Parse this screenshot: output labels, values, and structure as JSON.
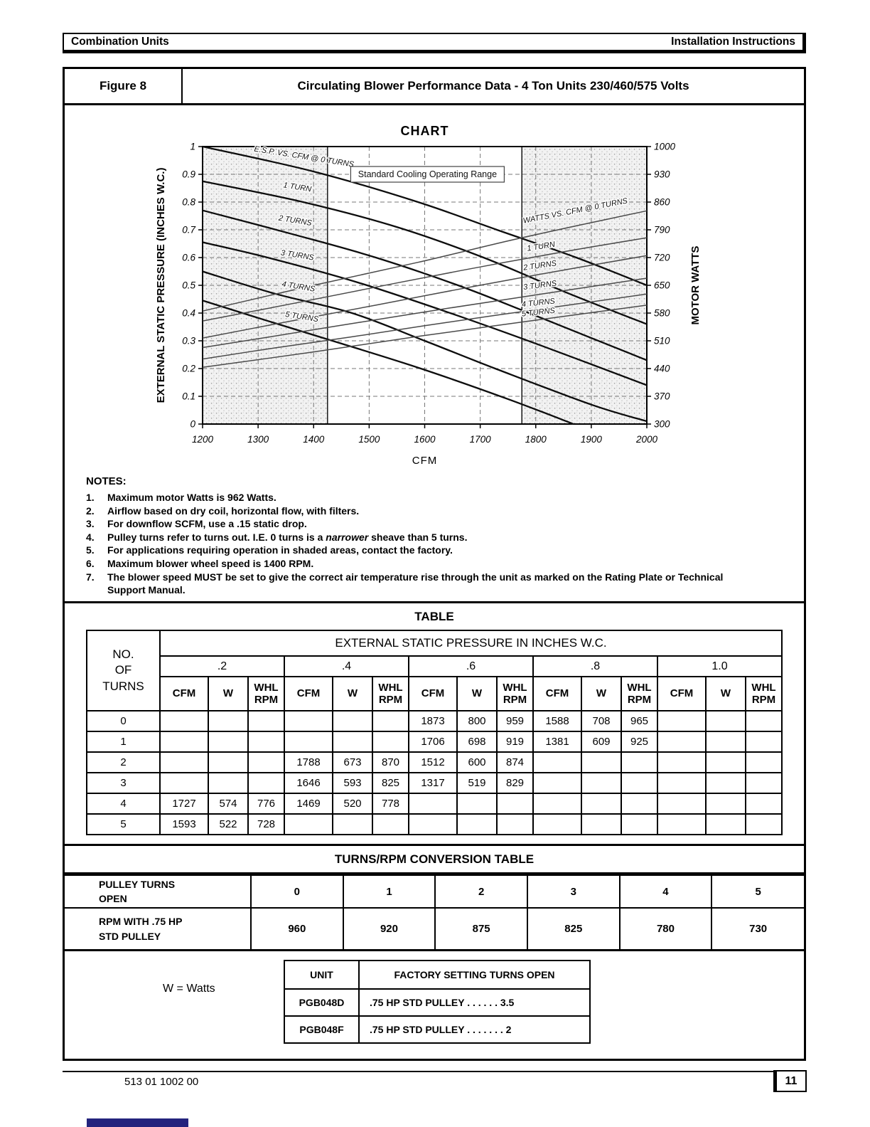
{
  "page_header": {
    "left": "Combination Units",
    "right": "Installation Instructions"
  },
  "figure": {
    "label": "Figure 8",
    "title": "Circulating Blower Performance Data - 4 Ton Units 230/460/575 Volts"
  },
  "chart_data": {
    "type": "line",
    "title": "CHART",
    "xlabel": "CFM",
    "ylabel_left": "EXTERNAL STATIC PRESSURE (INCHES W.C.)",
    "ylabel_right": "MOTOR WATTS",
    "xlim": [
      1200,
      2000
    ],
    "xticks": [
      1200,
      1300,
      1400,
      1500,
      1600,
      1700,
      1800,
      1900,
      2000
    ],
    "ylim_left": [
      0,
      1
    ],
    "yticks_left": [
      0,
      0.1,
      0.2,
      0.3,
      0.4,
      0.5,
      0.6,
      0.7,
      0.8,
      0.9,
      1
    ],
    "ylim_right": [
      300,
      1000
    ],
    "yticks_right": [
      300,
      370,
      440,
      510,
      580,
      650,
      720,
      790,
      860,
      930,
      1000
    ],
    "legend_label": "Standard Cooling Operating Range",
    "operating_range_cfm": [
      1425,
      1775
    ],
    "shaded_regions": [
      [
        1200,
        1425
      ],
      [
        1775,
        2000
      ]
    ],
    "esp_curves": [
      {
        "name": "0 turns",
        "label": {
          "text": "E.S.P.  VS. CFM @ 0 TURNS",
          "cfm": 1382,
          "v": 0.955,
          "rot": 9
        },
        "points": [
          [
            1200,
            1.0
          ],
          [
            1400,
            0.91
          ],
          [
            1588,
            0.8
          ],
          [
            1730,
            0.7
          ],
          [
            1873,
            0.6
          ],
          [
            2000,
            0.5
          ]
        ]
      },
      {
        "name": "1 turn",
        "label": {
          "text": "1 TURN",
          "cfm": 1370,
          "v": 0.845,
          "rot": 9
        },
        "points": [
          [
            1200,
            0.875
          ],
          [
            1381,
            0.8
          ],
          [
            1550,
            0.71
          ],
          [
            1706,
            0.6
          ],
          [
            1860,
            0.47
          ],
          [
            2000,
            0.36
          ]
        ]
      },
      {
        "name": "2 turns",
        "label": {
          "text": "2 TURNS",
          "cfm": 1366,
          "v": 0.725,
          "rot": 9
        },
        "points": [
          [
            1200,
            0.77
          ],
          [
            1370,
            0.68
          ],
          [
            1512,
            0.6
          ],
          [
            1660,
            0.5
          ],
          [
            1788,
            0.4
          ],
          [
            2000,
            0.23
          ]
        ]
      },
      {
        "name": "3 turns",
        "label": {
          "text": "3 TURNS",
          "cfm": 1370,
          "v": 0.6,
          "rot": 9
        },
        "points": [
          [
            1200,
            0.655
          ],
          [
            1317,
            0.6
          ],
          [
            1480,
            0.51
          ],
          [
            1646,
            0.4
          ],
          [
            1800,
            0.29
          ],
          [
            2000,
            0.14
          ]
        ]
      },
      {
        "name": "4 turns",
        "label": {
          "text": "4 TURNS",
          "cfm": 1372,
          "v": 0.487,
          "rot": 9
        },
        "points": [
          [
            1200,
            0.55
          ],
          [
            1330,
            0.47
          ],
          [
            1469,
            0.4
          ],
          [
            1600,
            0.3
          ],
          [
            1727,
            0.2
          ],
          [
            1900,
            0.07
          ],
          [
            2000,
            0.01
          ]
        ]
      },
      {
        "name": "5 turns",
        "label": {
          "text": "5 TURNS",
          "cfm": 1378,
          "v": 0.378,
          "rot": 9
        },
        "points": [
          [
            1200,
            0.445
          ],
          [
            1320,
            0.37
          ],
          [
            1450,
            0.29
          ],
          [
            1593,
            0.2
          ],
          [
            1750,
            0.09
          ],
          [
            1868,
            0.0
          ]
        ]
      }
    ],
    "watts_curves": [
      {
        "name": "0 turns",
        "label": {
          "text": "WATTS VS. CFM @ 0 TURNS",
          "cfm": 1872,
          "v": 832,
          "rot": -11
        },
        "points": [
          [
            1200,
            585
          ],
          [
            1400,
            650
          ],
          [
            1588,
            708
          ],
          [
            1750,
            762
          ],
          [
            1873,
            800
          ],
          [
            2000,
            838
          ]
        ]
      },
      {
        "name": "1 turn",
        "label": {
          "text": "1 TURN",
          "cfm": 1810,
          "v": 742,
          "rot": -9
        },
        "points": [
          [
            1200,
            560
          ],
          [
            1381,
            609
          ],
          [
            1550,
            656
          ],
          [
            1706,
            698
          ],
          [
            1860,
            737
          ],
          [
            2000,
            770
          ]
        ]
      },
      {
        "name": "2 turns",
        "label": {
          "text": "2 TURNS",
          "cfm": 1808,
          "v": 694,
          "rot": -8
        },
        "points": [
          [
            1200,
            517
          ],
          [
            1360,
            560
          ],
          [
            1512,
            600
          ],
          [
            1650,
            637
          ],
          [
            1788,
            673
          ],
          [
            2000,
            725
          ]
        ]
      },
      {
        "name": "3 turns",
        "label": {
          "text": "3 TURNS",
          "cfm": 1808,
          "v": 644,
          "rot": -7
        },
        "points": [
          [
            1200,
            493
          ],
          [
            1317,
            519
          ],
          [
            1480,
            556
          ],
          [
            1646,
            593
          ],
          [
            1820,
            630
          ],
          [
            2000,
            668
          ]
        ]
      },
      {
        "name": "4 turns",
        "label": {
          "text": "4 TURNS",
          "cfm": 1805,
          "v": 600,
          "rot": -6
        },
        "points": [
          [
            1200,
            464
          ],
          [
            1330,
            492
          ],
          [
            1469,
            520
          ],
          [
            1600,
            548
          ],
          [
            1727,
            574
          ],
          [
            2000,
            628
          ]
        ]
      },
      {
        "name": "5 turns",
        "label": {
          "text": "5 TURNS",
          "cfm": 1805,
          "v": 576,
          "rot": -6
        },
        "points": [
          [
            1200,
            443
          ],
          [
            1400,
            482
          ],
          [
            1593,
            522
          ],
          [
            1800,
            562
          ],
          [
            2000,
            600
          ]
        ]
      }
    ]
  },
  "notes": {
    "heading": "NOTES:",
    "items": [
      [
        {
          "t": "Maximum motor Watts is 962 Watts."
        }
      ],
      [
        {
          "t": "Airflow based on dry coil, horizontal flow, with filters."
        }
      ],
      [
        {
          "t": "For downflow SCFM, use a .15 static drop."
        }
      ],
      [
        {
          "t": "Pulley turns refer to turns out. I.E. 0 turns is a "
        },
        {
          "t": "narrower",
          "i": true
        },
        {
          "t": " sheave than 5 turns."
        }
      ],
      [
        {
          "t": "For applications requiring operation in shaded areas, contact the factory."
        }
      ],
      [
        {
          "t": "Maximum blower wheel speed is 1400 RPM."
        }
      ],
      [
        {
          "t": "The blower speed MUST be set to give the correct air temperature rise through the unit as marked on the Rating Plate or Technical Support Manual."
        }
      ]
    ]
  },
  "table": {
    "title": "TABLE",
    "header_top": "EXTERNAL STATIC PRESSURE IN INCHES W.C.",
    "row_header": "NO.\nOF\nTURNS",
    "pressures": [
      ".2",
      ".4",
      ".6",
      ".8",
      "1.0"
    ],
    "sub_headers": [
      "CFM",
      "W",
      "WHL\nRPM"
    ],
    "rows": [
      {
        "turns": "0",
        "cells": [
          "",
          "",
          "",
          "",
          "",
          "",
          "1873",
          "800",
          "959",
          "1588",
          "708",
          "965",
          "",
          "",
          ""
        ]
      },
      {
        "turns": "1",
        "cells": [
          "",
          "",
          "",
          "",
          "",
          "",
          "1706",
          "698",
          "919",
          "1381",
          "609",
          "925",
          "",
          "",
          ""
        ]
      },
      {
        "turns": "2",
        "cells": [
          "",
          "",
          "",
          "1788",
          "673",
          "870",
          "1512",
          "600",
          "874",
          "",
          "",
          "",
          "",
          "",
          ""
        ]
      },
      {
        "turns": "3",
        "cells": [
          "",
          "",
          "",
          "1646",
          "593",
          "825",
          "1317",
          "519",
          "829",
          "",
          "",
          "",
          "",
          "",
          ""
        ]
      },
      {
        "turns": "4",
        "cells": [
          "1727",
          "574",
          "776",
          "1469",
          "520",
          "778",
          "",
          "",
          "",
          "",
          "",
          "",
          "",
          "",
          ""
        ]
      },
      {
        "turns": "5",
        "cells": [
          "1593",
          "522",
          "728",
          "",
          "",
          "",
          "",
          "",
          "",
          "",
          "",
          "",
          "",
          "",
          ""
        ]
      }
    ]
  },
  "conversion": {
    "title": "TURNS/RPM CONVERSION TABLE",
    "row1_label": "PULLEY TURNS\nOPEN",
    "row1_values": [
      "0",
      "1",
      "2",
      "3",
      "4",
      "5"
    ],
    "row2_label": "RPM WITH .75 HP\nSTD PULLEY",
    "row2_values": [
      "960",
      "920",
      "875",
      "825",
      "780",
      "730"
    ]
  },
  "bottom": {
    "watts_note": "W = Watts",
    "unit_header": "UNIT",
    "setting_header": "FACTORY SETTING TURNS OPEN",
    "rows": [
      {
        "unit": "PGB048D",
        "setting": ".75 HP STD PULLEY  . . . . . .  3.5"
      },
      {
        "unit": "PGB048F",
        "setting": ".75 HP STD PULLEY  . . . . . . .  2"
      }
    ]
  },
  "footer": {
    "doc_number": "513 01 1002 00",
    "page_number": "11"
  }
}
